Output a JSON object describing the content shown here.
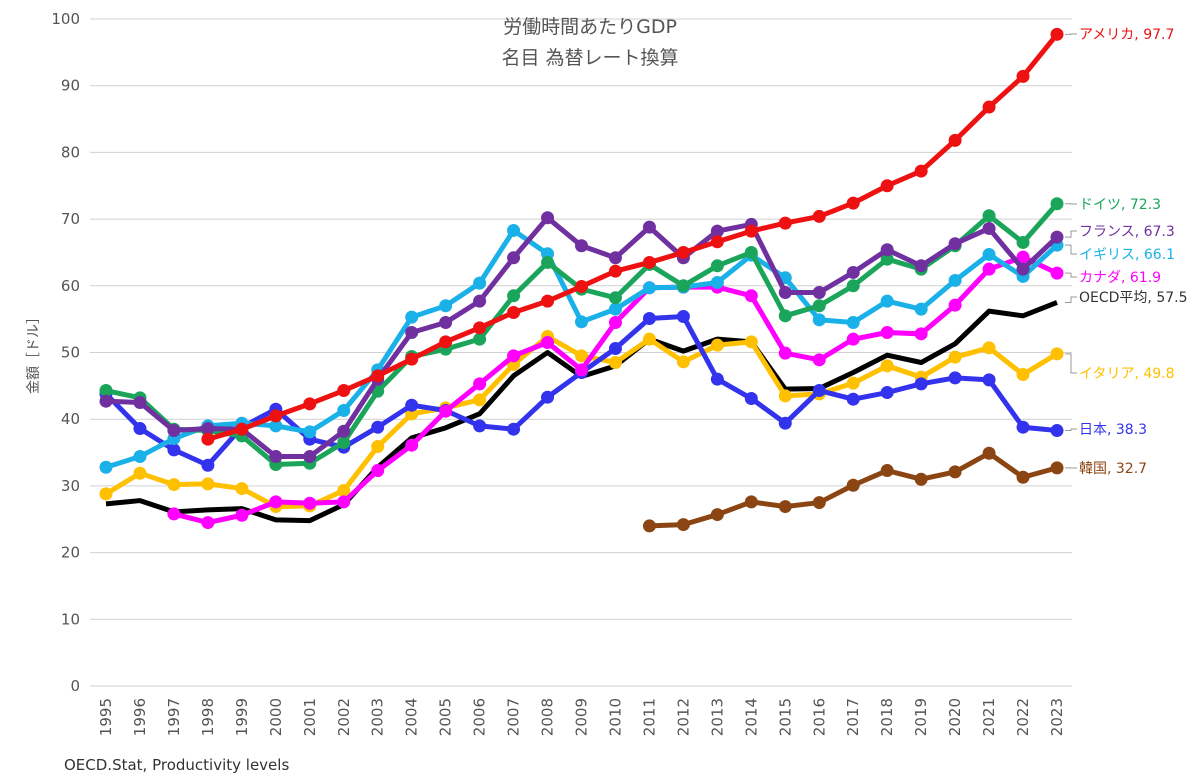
{
  "chart_data": {
    "type": "line",
    "title": "労働時間あたりGDP",
    "subtitle": "名目 為替レート換算",
    "xlabel": "",
    "ylabel": "金額［ドル］",
    "ylim": [
      0,
      100
    ],
    "yticks": [
      0,
      10,
      20,
      30,
      40,
      50,
      60,
      70,
      80,
      90,
      100
    ],
    "x": [
      1995,
      1996,
      1997,
      1998,
      1999,
      2000,
      2001,
      2002,
      2003,
      2004,
      2005,
      2006,
      2007,
      2008,
      2009,
      2010,
      2011,
      2012,
      2013,
      2014,
      2015,
      2016,
      2017,
      2018,
      2019,
      2020,
      2021,
      2022,
      2023
    ],
    "grid": true,
    "legend": "end-of-line labels, right",
    "series": [
      {
        "name": "アメリカ",
        "end_label": "アメリカ, 97.7",
        "color": "#ee1111",
        "values": [
          null,
          null,
          null,
          37,
          38.5,
          40.5,
          42.3,
          44.3,
          46.5,
          49,
          51.6,
          53.7,
          56,
          57.7,
          59.9,
          62.2,
          63.5,
          65,
          66.6,
          68.2,
          69.4,
          70.4,
          72.4,
          75,
          77.2,
          81.8,
          86.8,
          91.4,
          97.7
        ]
      },
      {
        "name": "ドイツ",
        "end_label": "ドイツ, 72.3",
        "color": "#1aa55a",
        "values": [
          44.3,
          43.2,
          38.5,
          38.3,
          37.5,
          33.2,
          33.4,
          36.5,
          44.2,
          49.4,
          50.5,
          52,
          58.5,
          63.5,
          59.5,
          58.2,
          63.2,
          60,
          63,
          65,
          55.5,
          57,
          60,
          64,
          62.5,
          66,
          70.5,
          66.5,
          72.3
        ]
      },
      {
        "name": "フランス",
        "end_label": "フランス, 67.3",
        "color": "#7030a0",
        "values": [
          42.7,
          42.5,
          38.3,
          38.6,
          38.5,
          34.4,
          34.4,
          38.2,
          46,
          53,
          54.5,
          57.7,
          64.2,
          70.2,
          66,
          64.2,
          68.8,
          64.2,
          68.2,
          69.2,
          59,
          59,
          62,
          65.4,
          63,
          66.3,
          68.6,
          62.5,
          67.3
        ]
      },
      {
        "name": "イギリス",
        "end_label": "イギリス, 66.1",
        "color": "#1ab0e8",
        "values": [
          32.8,
          34.4,
          37.1,
          39,
          39.4,
          39,
          38.1,
          41.3,
          47.4,
          55.3,
          57,
          60.4,
          68.3,
          64.8,
          54.6,
          56.5,
          59.7,
          59.8,
          60.5,
          64.6,
          61.2,
          54.9,
          54.5,
          57.7,
          56.5,
          60.8,
          64.7,
          61.4,
          66.1
        ]
      },
      {
        "name": "カナダ",
        "end_label": "カナダ, 61.9",
        "color": "#ff00ff",
        "values": [
          null,
          null,
          25.8,
          24.5,
          25.6,
          27.6,
          27.4,
          27.6,
          32.3,
          36.1,
          41.2,
          45.3,
          49.5,
          51.5,
          47.4,
          54.5,
          59.7,
          59.8,
          59.8,
          58.5,
          49.9,
          48.9,
          52,
          53,
          52.8,
          57.1,
          62.5,
          64.3,
          61.9
        ]
      },
      {
        "name": "OECD平均",
        "end_label": "OECD平均, 57.5",
        "color": "#000000",
        "markers": false,
        "values": [
          27.3,
          27.8,
          26.1,
          26.4,
          26.6,
          24.9,
          24.8,
          27.2,
          32.8,
          37.2,
          38.7,
          40.8,
          46.5,
          50,
          46.4,
          48,
          52,
          50.2,
          52,
          51.6,
          44.5,
          44.6,
          47,
          49.6,
          48.5,
          51.3,
          56.2,
          55.5,
          57.5
        ]
      },
      {
        "name": "イタリア",
        "end_label": "イタリア, 49.8",
        "color": "#ffc000",
        "values": [
          28.8,
          31.9,
          30.2,
          30.3,
          29.6,
          26.9,
          27,
          29.3,
          35.9,
          40.8,
          41.7,
          42.9,
          48.2,
          52.4,
          49.5,
          48.5,
          52,
          48.6,
          51.1,
          51.6,
          43.5,
          43.8,
          45.4,
          48,
          46.3,
          49.3,
          50.7,
          46.7,
          49.8
        ]
      },
      {
        "name": "日本",
        "end_label": "日本, 38.3",
        "color": "#3333ee",
        "values": [
          43.8,
          38.6,
          35.4,
          33.1,
          38.8,
          41.5,
          37,
          35.8,
          38.8,
          42.1,
          41.3,
          39,
          38.5,
          43.3,
          47,
          50.6,
          55.1,
          55.4,
          46,
          43.1,
          39.4,
          44.3,
          43,
          44,
          45.3,
          46.2,
          45.9,
          38.8,
          38.3
        ]
      },
      {
        "name": "韓国",
        "end_label": "韓国, 32.7",
        "color": "#8b4513",
        "values": [
          null,
          null,
          null,
          null,
          null,
          null,
          null,
          null,
          null,
          null,
          null,
          null,
          null,
          null,
          null,
          null,
          24,
          24.2,
          25.7,
          27.6,
          26.9,
          27.5,
          30.1,
          32.3,
          31,
          32.1,
          34.9,
          31.3,
          32.7
        ]
      }
    ]
  },
  "source": "OECD.Stat, Productivity levels"
}
